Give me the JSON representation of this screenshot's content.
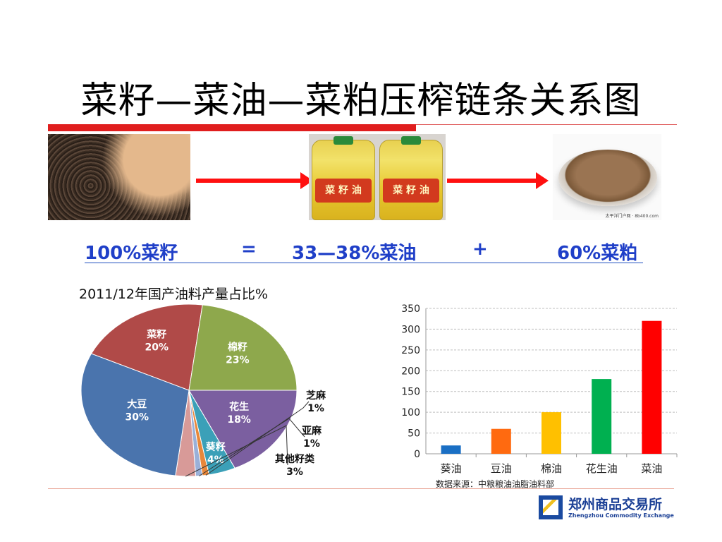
{
  "slide": {
    "title": "菜籽—菜油—菜粕压榨链条关系图",
    "equation": {
      "term1": "100%菜籽",
      "op1": "=",
      "term2": "33—38%菜油",
      "op2": "+",
      "term3": "60%菜粕"
    },
    "oil_label": "菜 籽 油",
    "meal_caption": "太平洋门户网 · 8b400.com",
    "source": "数据来源：中粮粮油油脂油料部",
    "logo": {
      "name_cn": "郑州商品交易所",
      "name_en": "Zhengzhou Commodity Exchange"
    },
    "colors": {
      "accent_red": "#e01e1e",
      "equation_blue": "#1f3fc8",
      "logo_blue": "#1a4aa0"
    }
  },
  "chart_data": [
    {
      "type": "pie",
      "title": "2011/12年国产油料产量占比%",
      "slices": [
        {
          "label": "花生",
          "value": 18,
          "text": "18%",
          "color": "#7b5fa0"
        },
        {
          "label": "葵籽",
          "value": 4,
          "text": "4%",
          "color": "#3ba0b8"
        },
        {
          "label": "芝麻",
          "value": 1,
          "text": "1%",
          "color": "#e8873a"
        },
        {
          "label": "亚麻",
          "value": 1,
          "text": "1%",
          "color": "#9ab0d8"
        },
        {
          "label": "其他籽类",
          "value": 3,
          "text": "3%",
          "color": "#d89a98"
        },
        {
          "label": "大豆",
          "value": 30,
          "text": "30%",
          "color": "#4a74ad"
        },
        {
          "label": "菜籽",
          "value": 20,
          "text": "20%",
          "color": "#b04a48"
        },
        {
          "label": "棉籽",
          "value": 23,
          "text": "23%",
          "color": "#8ea84c"
        }
      ]
    },
    {
      "type": "bar",
      "categories": [
        "葵油",
        "豆油",
        "棉油",
        "花生油",
        "菜油"
      ],
      "values": [
        20,
        60,
        100,
        180,
        320
      ],
      "colors": [
        "#1a6fc4",
        "#ff6a10",
        "#ffc000",
        "#00b050",
        "#ff0000"
      ],
      "ylim": [
        0,
        350
      ],
      "yticks": [
        "0",
        "50",
        "100",
        "150",
        "200",
        "250",
        "300",
        "350"
      ],
      "grid": true
    }
  ]
}
